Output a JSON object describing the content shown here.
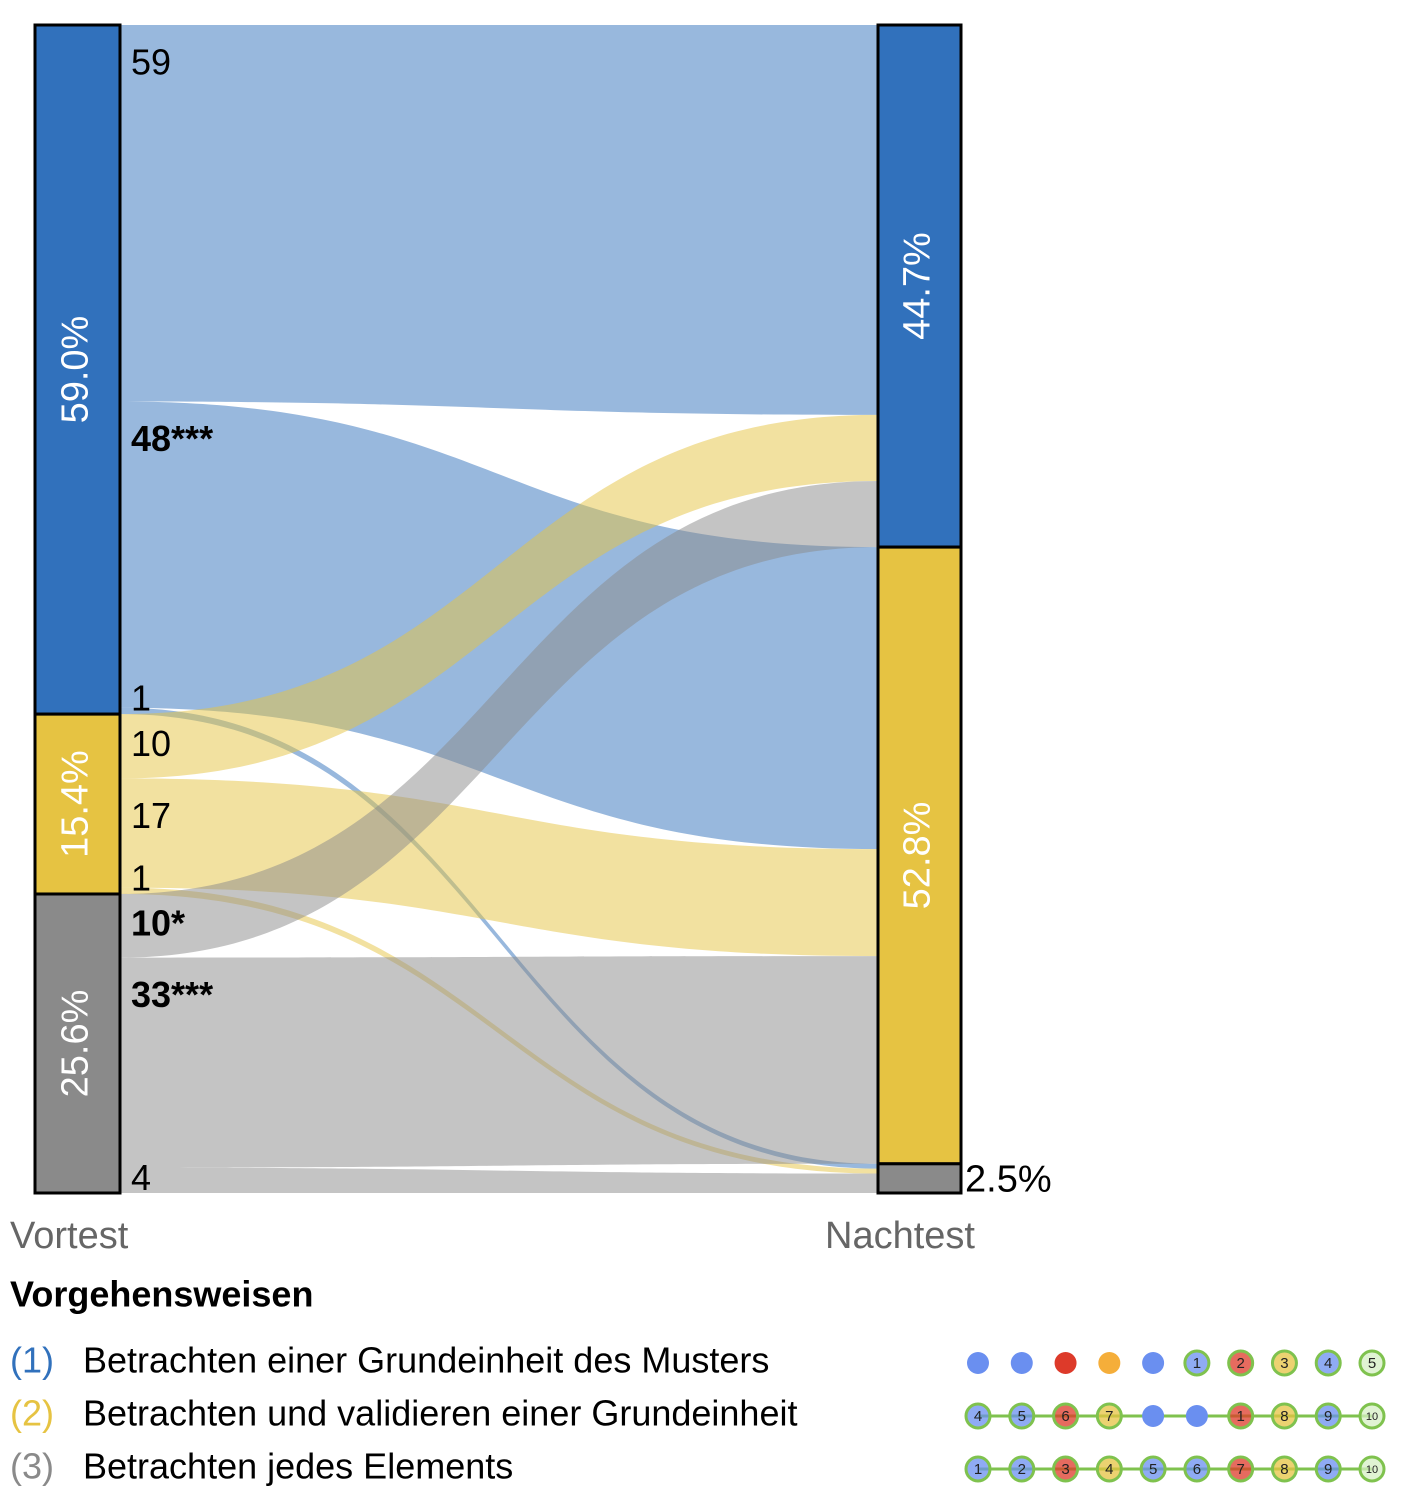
{
  "chart_data": {
    "type": "sankey",
    "stages": [
      "Vortest",
      "Nachtest"
    ],
    "left_nodes": [
      {
        "value": 59.0,
        "label": "59.0%",
        "color": "#3171bc"
      },
      {
        "value": 15.4,
        "label": "15.4%",
        "color": "#e6c342"
      },
      {
        "value": 25.6,
        "label": "25.6%",
        "color": "#8a8a8a"
      }
    ],
    "right_nodes": [
      {
        "value": 44.7,
        "label": "44.7%",
        "color": "#3171bc"
      },
      {
        "value": 52.8,
        "label": "52.8%",
        "color": "#e6c342"
      },
      {
        "value": 2.5,
        "label": "2.5%",
        "color": "#8a8a8a"
      }
    ],
    "flows": [
      {
        "source": 0,
        "target": 0,
        "value": 59
      },
      {
        "source": 0,
        "target": 1,
        "value": 48,
        "label": "48***"
      },
      {
        "source": 0,
        "target": 2,
        "value": 1
      },
      {
        "source": 1,
        "target": 0,
        "value": 10
      },
      {
        "source": 1,
        "target": 1,
        "value": 17
      },
      {
        "source": 1,
        "target": 2,
        "value": 1
      },
      {
        "source": 2,
        "target": 0,
        "value": 10,
        "label": "10*"
      },
      {
        "source": 2,
        "target": 1,
        "value": 33,
        "label": "33***"
      },
      {
        "source": 2,
        "target": 2,
        "value": 4
      }
    ],
    "legend": {
      "title": "Vorgehensweisen",
      "items": [
        {
          "number": "(1)",
          "text": "Betrachten einer Grundeinheit des Musters",
          "color": "#3171bc",
          "icons": [
            {
              "color": "#6a8ff0"
            },
            {
              "color": "#6a8ff0"
            },
            {
              "color": "#dd3a2a"
            },
            {
              "color": "#f5ae3a"
            },
            {
              "color": "#6a8ff0"
            },
            {
              "color": "#6a8ff0",
              "label": "1"
            },
            {
              "color": "#dd3a2a",
              "label": "2"
            },
            {
              "color": "#e6c342",
              "label": "3"
            },
            {
              "color": "#6a8ff0",
              "label": "4"
            },
            {
              "color": "#d6efc4",
              "label": "5"
            }
          ]
        },
        {
          "number": "(2)",
          "text": "Betrachten und validieren einer Grundeinheit",
          "color": "#e6c342",
          "icons": [
            {
              "color": "#6a8ff0",
              "label": "4"
            },
            {
              "color": "#6a8ff0",
              "label": "5"
            },
            {
              "color": "#dd3a2a",
              "label": "6"
            },
            {
              "color": "#e6c342",
              "label": "7"
            },
            {
              "color": "#6a8ff0"
            },
            {
              "color": "#6a8ff0"
            },
            {
              "color": "#dd3a2a",
              "label": "1"
            },
            {
              "color": "#e6c342",
              "label": "8"
            },
            {
              "color": "#6a8ff0",
              "label": "9"
            },
            {
              "color": "#d6efc4",
              "label": "10"
            }
          ]
        },
        {
          "number": "(3)",
          "text": "Betrachten jedes Elements",
          "color": "#8a8a8a",
          "icons": [
            {
              "color": "#6a8ff0",
              "label": "1"
            },
            {
              "color": "#6a8ff0",
              "label": "2"
            },
            {
              "color": "#dd3a2a",
              "label": "3"
            },
            {
              "color": "#e6c342",
              "label": "4"
            },
            {
              "color": "#6a8ff0",
              "label": "5"
            },
            {
              "color": "#6a8ff0",
              "label": "6"
            },
            {
              "color": "#dd3a2a",
              "label": "7"
            },
            {
              "color": "#e6c342",
              "label": "8"
            },
            {
              "color": "#6a8ff0",
              "label": "9"
            },
            {
              "color": "#d6efc4",
              "label": "10"
            }
          ]
        }
      ]
    }
  }
}
